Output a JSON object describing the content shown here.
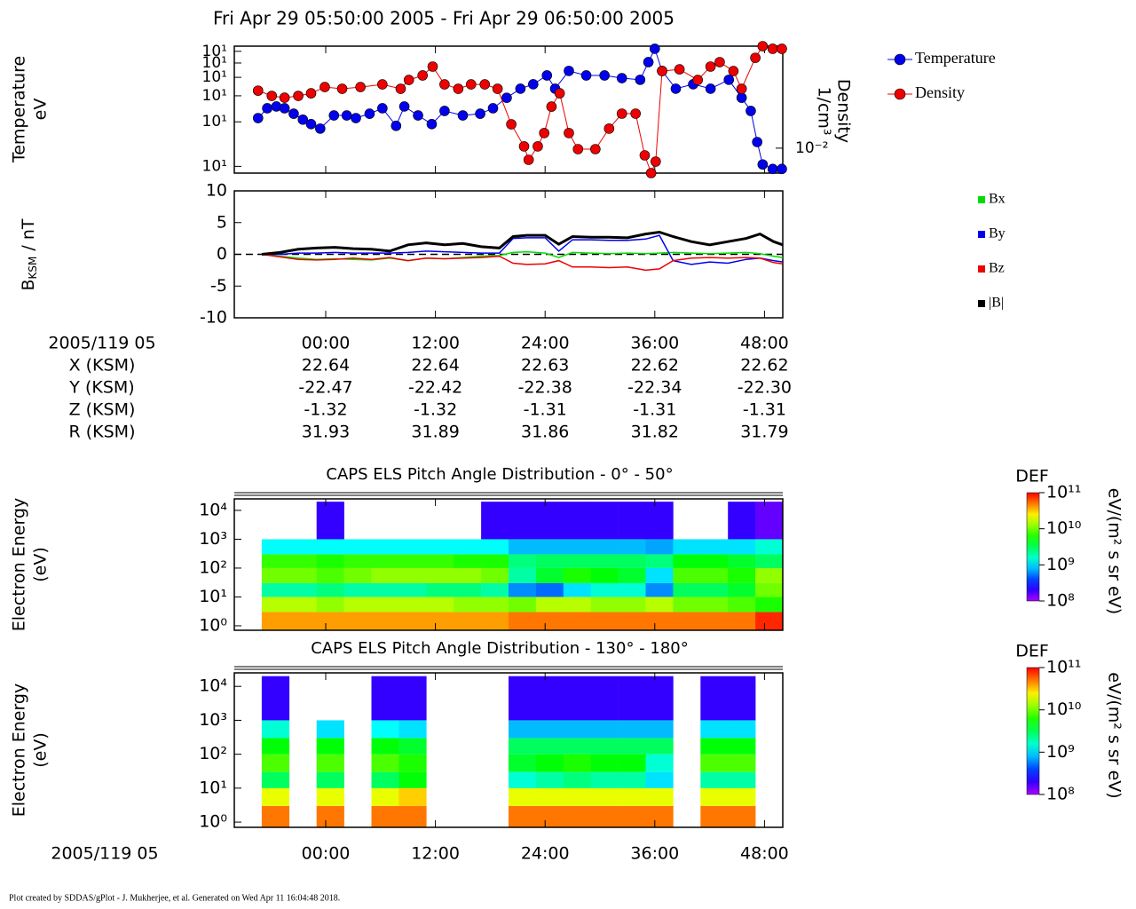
{
  "title": "Fri Apr 29 05:50:00 2005 - Fri Apr 29 06:50:00 2005",
  "footer": "Plot created by SDDAS/gPlot - J. Mukherjee, et al.  Generated on Wed Apr 11 16:04:48 2018.",
  "ephemeris": {
    "epoch": "2005/119 05",
    "rows": [
      {
        "label": "X (KSM)",
        "values": [
          "22.64",
          "22.64",
          "22.63",
          "22.62",
          "22.62"
        ]
      },
      {
        "label": "Y (KSM)",
        "values": [
          "-22.47",
          "-22.42",
          "-22.38",
          "-22.34",
          "-22.30"
        ]
      },
      {
        "label": "Z (KSM)",
        "values": [
          "-1.32",
          "-1.32",
          "-1.31",
          "-1.31",
          "-1.31"
        ]
      },
      {
        "label": "R (KSM)",
        "values": [
          "31.93",
          "31.89",
          "31.86",
          "31.82",
          "31.79"
        ]
      }
    ]
  },
  "chart_data": [
    {
      "type": "line",
      "markers": true,
      "ylabel": [
        "Temperature",
        "eV"
      ],
      "y2label": [
        "Density",
        "1/cm³"
      ],
      "xlim": [
        -10,
        50
      ],
      "ylim": [
        9,
        65
      ],
      "ylog": true,
      "yticks": [
        {
          "value": 10,
          "label": "10¹"
        },
        {
          "value": 20,
          "label": "10¹"
        },
        {
          "value": 30,
          "label": "10¹"
        },
        {
          "value": 40,
          "label": "10¹"
        },
        {
          "value": 50,
          "label": "10¹"
        },
        {
          "value": 60,
          "label": "10¹"
        }
      ],
      "y2lim": [
        0.005,
        0.17
      ],
      "y2log": true,
      "y2ticks": [
        {
          "value": 0.01,
          "label": "10⁻²"
        }
      ],
      "legend": "right",
      "series": [
        {
          "name": "Temperature",
          "color": "#0000ee",
          "x": [
            -7.4,
            -6.4,
            -5.4,
            -4.5,
            -3.5,
            -2.5,
            -1.6,
            -0.6,
            0.9,
            2.3,
            3.3,
            4.8,
            6.2,
            7.7,
            8.6,
            10.1,
            11.6,
            13,
            15,
            16.9,
            18.3,
            19.8,
            21.3,
            22.7,
            24.2,
            25.1,
            26.6,
            28.5,
            30.5,
            32.4,
            34.4,
            35.3,
            36,
            36.8,
            38.3,
            40.2,
            42.1,
            44.1,
            45.5,
            46.5,
            47.2,
            47.8,
            48.9,
            49.9
          ],
          "values": [
            21.2,
            24.7,
            25.4,
            24.7,
            22.7,
            20.7,
            19.3,
            18,
            22.1,
            22.1,
            21.2,
            22.7,
            24.7,
            18.8,
            25.4,
            22.1,
            19.3,
            23.7,
            22.1,
            22.7,
            24.7,
            29.1,
            33.5,
            35.9,
            41.2,
            33.5,
            44.2,
            41.2,
            41.2,
            39.5,
            38.5,
            50.7,
            62.4,
            44.2,
            33.5,
            35.9,
            33.5,
            38.5,
            29.1,
            23.7,
            14.6,
            10.3,
            9.6,
            9.6
          ]
        },
        {
          "name": "Density",
          "color": "#ee0000",
          "axis": "y2",
          "x": [
            -7.4,
            -5.9,
            -4.5,
            -3,
            -1.6,
            -0.1,
            1.8,
            3.8,
            6.2,
            8.2,
            9.1,
            10.6,
            11.7,
            13,
            14.5,
            15.9,
            17.4,
            18.8,
            20.3,
            21.7,
            22.2,
            23.2,
            23.9,
            24.7,
            25.6,
            26.6,
            27.6,
            29.5,
            31,
            32.4,
            33.9,
            34.9,
            35.6,
            36.1,
            36.8,
            38.7,
            40.7,
            42.1,
            43.1,
            44.6,
            45.5,
            47,
            47.8,
            48.9,
            49.9
          ],
          "values": [
            0.0494,
            0.0427,
            0.0406,
            0.0427,
            0.0459,
            0.0546,
            0.052,
            0.0546,
            0.0588,
            0.052,
            0.0665,
            0.0754,
            0.0964,
            0.0588,
            0.052,
            0.0588,
            0.0588,
            0.052,
            0.0194,
            0.0105,
            0.00724,
            0.0105,
            0.0152,
            0.0317,
            0.0459,
            0.0152,
            0.00973,
            0.00973,
            0.0172,
            0.0261,
            0.0261,
            0.00819,
            0.005,
            0.00689,
            0.0851,
            0.0893,
            0.0665,
            0.0964,
            0.109,
            0.0851,
            0.052,
            0.123,
            0.17,
            0.158,
            0.158
          ]
        }
      ]
    },
    {
      "type": "line",
      "ylabel": {
        "symbol": "B",
        "subscript": "KSM",
        "unit": " / nT"
      },
      "xlim": [
        -10,
        50
      ],
      "xticks": [
        {
          "value": 0,
          "label": "00:00"
        },
        {
          "value": 12,
          "label": "12:00"
        },
        {
          "value": 24,
          "label": "24:00"
        },
        {
          "value": 36,
          "label": "36:00"
        },
        {
          "value": 48,
          "label": "48:00"
        }
      ],
      "ylim": [
        -10,
        10
      ],
      "yticks": [
        -10,
        -5,
        0,
        5,
        10
      ],
      "legend": "right",
      "x": [
        -7,
        -5,
        -3,
        -1,
        1,
        3,
        5,
        7,
        9,
        11,
        13,
        15,
        17,
        19,
        20.5,
        22,
        24,
        25.5,
        27,
        29,
        31,
        33,
        35,
        36.5,
        38,
        40,
        42,
        44,
        46,
        47.5,
        49,
        50
      ],
      "series": [
        {
          "name": "Bx",
          "color": "#00dd00",
          "values": [
            0,
            -0.3,
            -0.6,
            -0.8,
            -0.7,
            -0.8,
            -0.9,
            -0.6,
            -1.0,
            -0.6,
            -0.7,
            -0.5,
            -0.3,
            -0.2,
            0.3,
            0.4,
            0.2,
            -0.5,
            0.3,
            0.2,
            0.1,
            0.2,
            0.1,
            0.2,
            0.3,
            0.2,
            0.1,
            0.2,
            0.3,
            0.1,
            -0.3,
            -0.5
          ]
        },
        {
          "name": "By",
          "color": "#0000ee",
          "values": [
            0,
            0,
            0.2,
            0.2,
            0.3,
            0.2,
            0.2,
            0.2,
            0.3,
            0.5,
            0.4,
            0.3,
            0.2,
            0.2,
            2.5,
            2.6,
            2.6,
            0.5,
            2.3,
            2.3,
            2.2,
            2.2,
            2.4,
            3.0,
            -1.0,
            -1.6,
            -1.2,
            -1.4,
            -0.8,
            -0.6,
            -1.0,
            -1.2
          ]
        },
        {
          "name": "Bz",
          "color": "#ee0000",
          "values": [
            0,
            -0.4,
            -0.8,
            -0.9,
            -0.8,
            -0.6,
            -0.8,
            -0.5,
            -1.0,
            -0.6,
            -0.7,
            -0.6,
            -0.5,
            -0.3,
            -1.4,
            -1.6,
            -1.5,
            -1.0,
            -2.0,
            -2.0,
            -2.1,
            -2.0,
            -2.5,
            -2.3,
            -1.0,
            -0.6,
            -0.5,
            -0.6,
            -0.5,
            -0.6,
            -1.3,
            -1.5
          ]
        },
        {
          "name": "|B|",
          "color": "#000000",
          "values": [
            0,
            0.3,
            0.8,
            1.0,
            1.1,
            0.9,
            0.8,
            0.5,
            1.5,
            1.8,
            1.5,
            1.7,
            1.2,
            1.0,
            2.8,
            3.0,
            3.0,
            1.6,
            2.8,
            2.7,
            2.7,
            2.6,
            3.2,
            3.5,
            2.8,
            2.0,
            1.5,
            2.0,
            2.5,
            3.2,
            2.0,
            1.5
          ]
        }
      ]
    },
    {
      "type": "heatmap",
      "title": "CAPS ELS Pitch Angle Distribution - 0° - 50°",
      "ylabel": [
        "Electron Energy",
        "(eV)"
      ],
      "xlim": [
        -10,
        50
      ],
      "ylim": [
        0.7,
        25000
      ],
      "ylog": true,
      "yticks": [
        {
          "value": 1,
          "label": "10⁰"
        },
        {
          "value": 10,
          "label": "10¹"
        },
        {
          "value": 100,
          "label": "10²"
        },
        {
          "value": 1000,
          "label": "10³"
        },
        {
          "value": 10000,
          "label": "10⁴"
        }
      ],
      "x_edges": [
        -7,
        -4,
        -1,
        2,
        5,
        8,
        11,
        14,
        17,
        20,
        23,
        26,
        29,
        32,
        35,
        38,
        41,
        44,
        47,
        50
      ],
      "y_edges": [
        0.7,
        3,
        10,
        30,
        100,
        300,
        1000,
        20000
      ],
      "colormap": "rainbow",
      "colorbar": {
        "title": "DEF",
        "label": "eV/(m² s sr eV)",
        "lim": [
          100000000.0,
          100000000000.0
        ],
        "log": true,
        "ticks": [
          {
            "value": 100000000.0,
            "label": "10⁸"
          },
          {
            "value": 1000000000.0,
            "label": "10⁹"
          },
          {
            "value": 10000000000.0,
            "label": "10¹⁰"
          },
          {
            "value": 100000000000.0,
            "label": "10¹¹"
          }
        ]
      },
      "values": [
        [
          40000000000.0,
          40000000000.0,
          40000000000.0,
          40000000000.0,
          40000000000.0,
          40000000000.0,
          40000000000.0,
          40000000000.0,
          40000000000.0,
          50000000000.0,
          50000000000.0,
          50000000000.0,
          50000000000.0,
          50000000000.0,
          50000000000.0,
          50000000000.0,
          50000000000.0,
          50000000000.0,
          80000000000.0
        ],
        [
          15000000000.0,
          15000000000.0,
          12000000000.0,
          15000000000.0,
          15000000000.0,
          15000000000.0,
          15000000000.0,
          12000000000.0,
          12000000000.0,
          10000000000.0,
          15000000000.0,
          15000000000.0,
          12000000000.0,
          12000000000.0,
          15000000000.0,
          10000000000.0,
          10000000000.0,
          8000000000.0,
          6000000000.0
        ],
        [
          2000000000.0,
          2000000000.0,
          2500000000.0,
          2000000000.0,
          2000000000.0,
          2000000000.0,
          2500000000.0,
          2500000000.0,
          2000000000.0,
          600000000.0,
          500000000.0,
          1000000000.0,
          1500000000.0,
          1500000000.0,
          600000000.0,
          3000000000.0,
          3000000000.0,
          4000000000.0,
          10000000000.0
        ],
        [
          10000000000.0,
          10000000000.0,
          8000000000.0,
          10000000000.0,
          12000000000.0,
          12000000000.0,
          12000000000.0,
          12000000000.0,
          10000000000.0,
          2000000000.0,
          4000000000.0,
          6000000000.0,
          5000000000.0,
          4000000000.0,
          1000000000.0,
          8000000000.0,
          8000000000.0,
          6000000000.0,
          12000000000.0
        ],
        [
          7000000000.0,
          7000000000.0,
          6000000000.0,
          7000000000.0,
          7000000000.0,
          7000000000.0,
          7000000000.0,
          6000000000.0,
          6000000000.0,
          2500000000.0,
          3000000000.0,
          3000000000.0,
          3000000000.0,
          3000000000.0,
          2500000000.0,
          5000000000.0,
          5000000000.0,
          4000000000.0,
          3000000000.0
        ],
        [
          1200000000.0,
          1200000000.0,
          1200000000.0,
          1200000000.0,
          1200000000.0,
          1200000000.0,
          1200000000.0,
          1200000000.0,
          1200000000.0,
          800000000.0,
          800000000.0,
          800000000.0,
          800000000.0,
          800000000.0,
          700000000.0,
          1000000000.0,
          1000000000.0,
          1000000000.0,
          1500000000.0
        ],
        [
          null,
          null,
          200000000.0,
          null,
          null,
          null,
          null,
          null,
          200000000.0,
          200000000.0,
          200000000.0,
          200000000.0,
          200000000.0,
          200000000.0,
          200000000.0,
          null,
          null,
          200000000.0,
          150000000.0
        ]
      ]
    },
    {
      "type": "heatmap",
      "title": "CAPS ELS Pitch Angle Distribution - 130° - 180°",
      "ylabel": [
        "Electron Energy",
        "(eV)"
      ],
      "xlim": [
        -10,
        50
      ],
      "xticks": [
        {
          "value": 0,
          "label": "00:00"
        },
        {
          "value": 12,
          "label": "12:00"
        },
        {
          "value": 24,
          "label": "24:00"
        },
        {
          "value": 36,
          "label": "36:00"
        },
        {
          "value": 48,
          "label": "48:00"
        }
      ],
      "ylim": [
        0.7,
        25000
      ],
      "ylog": true,
      "yticks": [
        {
          "value": 1,
          "label": "10⁰"
        },
        {
          "value": 10,
          "label": "10¹"
        },
        {
          "value": 100,
          "label": "10²"
        },
        {
          "value": 1000,
          "label": "10³"
        },
        {
          "value": 10000,
          "label": "10⁴"
        }
      ],
      "x_edges": [
        -7,
        -4,
        -1,
        2,
        5,
        8,
        11,
        14,
        17,
        20,
        23,
        26,
        29,
        32,
        35,
        38,
        41,
        44,
        47,
        50
      ],
      "y_edges": [
        0.7,
        3,
        10,
        30,
        100,
        300,
        1000,
        20000
      ],
      "colormap": "rainbow",
      "colorbar": {
        "title": "DEF",
        "label": "eV/(m² s sr eV)",
        "lim": [
          100000000.0,
          100000000000.0
        ],
        "log": true,
        "ticks": [
          {
            "value": 100000000.0,
            "label": "10⁸"
          },
          {
            "value": 1000000000.0,
            "label": "10⁹"
          },
          {
            "value": 10000000000.0,
            "label": "10¹⁰"
          },
          {
            "value": 100000000000.0,
            "label": "10¹¹"
          }
        ]
      },
      "values": [
        [
          50000000000.0,
          null,
          50000000000.0,
          null,
          50000000000.0,
          50000000000.0,
          null,
          null,
          null,
          50000000000.0,
          50000000000.0,
          50000000000.0,
          50000000000.0,
          50000000000.0,
          50000000000.0,
          null,
          50000000000.0,
          50000000000.0,
          null
        ],
        [
          20000000000.0,
          null,
          20000000000.0,
          null,
          20000000000.0,
          30000000000.0,
          null,
          null,
          null,
          20000000000.0,
          20000000000.0,
          20000000000.0,
          20000000000.0,
          20000000000.0,
          20000000000.0,
          null,
          20000000000.0,
          20000000000.0,
          null
        ],
        [
          3000000000.0,
          null,
          3000000000.0,
          null,
          3000000000.0,
          5000000000.0,
          null,
          null,
          null,
          1500000000.0,
          2000000000.0,
          2500000000.0,
          2000000000.0,
          2000000000.0,
          1000000000.0,
          null,
          2000000000.0,
          2000000000.0,
          null
        ],
        [
          8000000000.0,
          null,
          8000000000.0,
          null,
          8000000000.0,
          6000000000.0,
          null,
          null,
          null,
          4000000000.0,
          5000000000.0,
          6000000000.0,
          5000000000.0,
          5000000000.0,
          1500000000.0,
          null,
          8000000000.0,
          8000000000.0,
          null
        ],
        [
          5000000000.0,
          null,
          5000000000.0,
          null,
          5000000000.0,
          4000000000.0,
          null,
          null,
          null,
          3000000000.0,
          3000000000.0,
          3000000000.0,
          3000000000.0,
          3000000000.0,
          3000000000.0,
          null,
          5000000000.0,
          5000000000.0,
          null
        ],
        [
          1500000000.0,
          null,
          1000000000.0,
          null,
          1200000000.0,
          1000000000.0,
          null,
          null,
          null,
          800000000.0,
          800000000.0,
          800000000.0,
          800000000.0,
          800000000.0,
          800000000.0,
          null,
          1000000000.0,
          1000000000.0,
          null
        ],
        [
          200000000.0,
          null,
          null,
          null,
          200000000.0,
          200000000.0,
          null,
          null,
          null,
          200000000.0,
          200000000.0,
          200000000.0,
          200000000.0,
          200000000.0,
          200000000.0,
          null,
          200000000.0,
          200000000.0,
          null
        ]
      ]
    }
  ]
}
